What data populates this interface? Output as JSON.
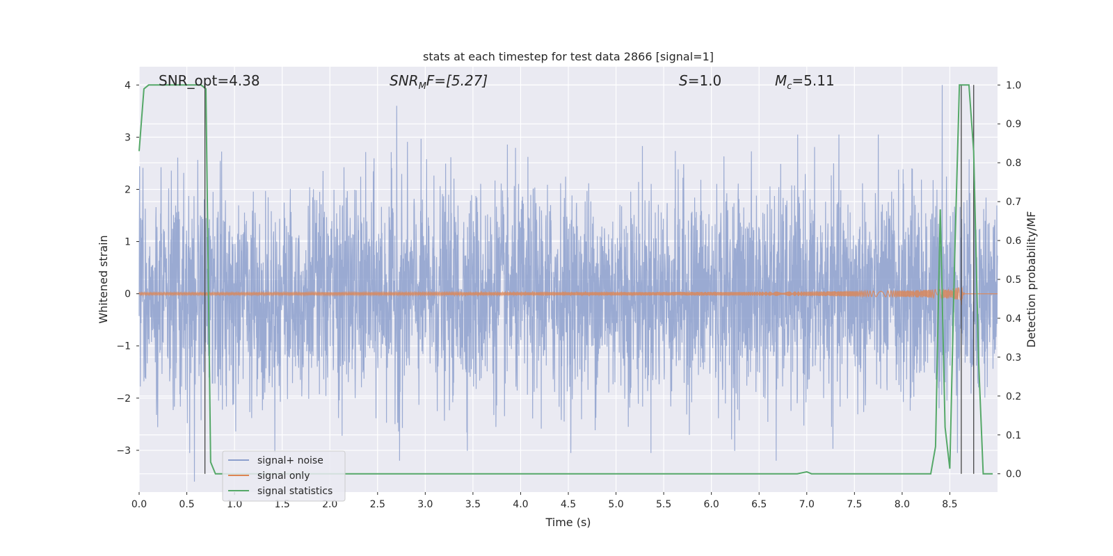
{
  "chart_data": {
    "type": "line",
    "title": "stats at each timestep for test data 2866 [signal=1]",
    "xlabel": "Time (s)",
    "ylabel": "Whitened strain",
    "y2label": "Detection probability/MF",
    "xlim": [
      0.0,
      9.0
    ],
    "ylim": [
      -3.8,
      4.35
    ],
    "y2lim": [
      -0.047,
      1.047
    ],
    "x_ticks": [
      0.0,
      0.5,
      1.0,
      1.5,
      2.0,
      2.5,
      3.0,
      3.5,
      4.0,
      4.5,
      5.0,
      5.5,
      6.0,
      6.5,
      7.0,
      7.5,
      8.0,
      8.5
    ],
    "y_ticks": [
      -3,
      -2,
      -1,
      0,
      1,
      2,
      3,
      4
    ],
    "y2_ticks": [
      0.0,
      0.1,
      0.2,
      0.3,
      0.4,
      0.5,
      0.6,
      0.7,
      0.8,
      0.9,
      1.0
    ],
    "grid": true,
    "legend_position": "bottom-left",
    "annotations": {
      "snr_opt": "SNR_opt=4.38",
      "snr_mf_label": "SNR",
      "snr_mf_sub": "M",
      "snr_mf_rest": "F=[5.27]",
      "s_label": "S",
      "s_rest": "=1.0",
      "mc_label": "M",
      "mc_sub": "c",
      "mc_rest": "=5.11"
    },
    "series": [
      {
        "name": "signal+ noise",
        "axis": "left",
        "color": "#8c9fcd",
        "amplitude_sigma": 1.0,
        "peak_values": [
          {
            "x": 2.7,
            "y": 3.6
          },
          {
            "x": 8.42,
            "y": 4.0
          },
          {
            "x": 0.58,
            "y": -3.6
          },
          {
            "x": 2.73,
            "y": -3.2
          },
          {
            "x": 6.68,
            "y": -3.2
          }
        ]
      },
      {
        "name": "signal only",
        "axis": "left",
        "color": "#dd8452",
        "chirp_end_time": 8.62,
        "chirp_peak_amplitude": 0.38
      },
      {
        "name": "signal statistics",
        "axis": "right",
        "color": "#55a868",
        "x": [
          0.0,
          0.05,
          0.1,
          0.2,
          0.3,
          0.4,
          0.5,
          0.6,
          0.65,
          0.7,
          0.75,
          0.8,
          0.85,
          0.9,
          1.5,
          2.0,
          3.0,
          4.0,
          5.0,
          6.0,
          6.2,
          6.5,
          6.9,
          7.0,
          7.05,
          7.1,
          7.5,
          8.0,
          8.3,
          8.35,
          8.4,
          8.45,
          8.5,
          8.55,
          8.6,
          8.65,
          8.7,
          8.75,
          8.8,
          8.85,
          8.95
        ],
        "y": [
          0.83,
          0.99,
          1.0,
          1.0,
          1.0,
          1.0,
          1.0,
          1.0,
          1.0,
          0.99,
          0.03,
          0.0,
          0.0,
          0.0,
          0.0,
          0.0,
          0.0,
          0.0,
          0.0,
          0.0,
          0.0,
          0.0,
          0.0,
          0.005,
          0.0,
          0.0,
          0.0,
          0.0,
          0.0,
          0.07,
          0.68,
          0.12,
          0.013,
          0.55,
          1.0,
          1.0,
          1.0,
          0.83,
          0.3,
          0.0,
          0.0
        ]
      }
    ],
    "vertical_lines": [
      0.69,
      8.62,
      8.75
    ]
  }
}
